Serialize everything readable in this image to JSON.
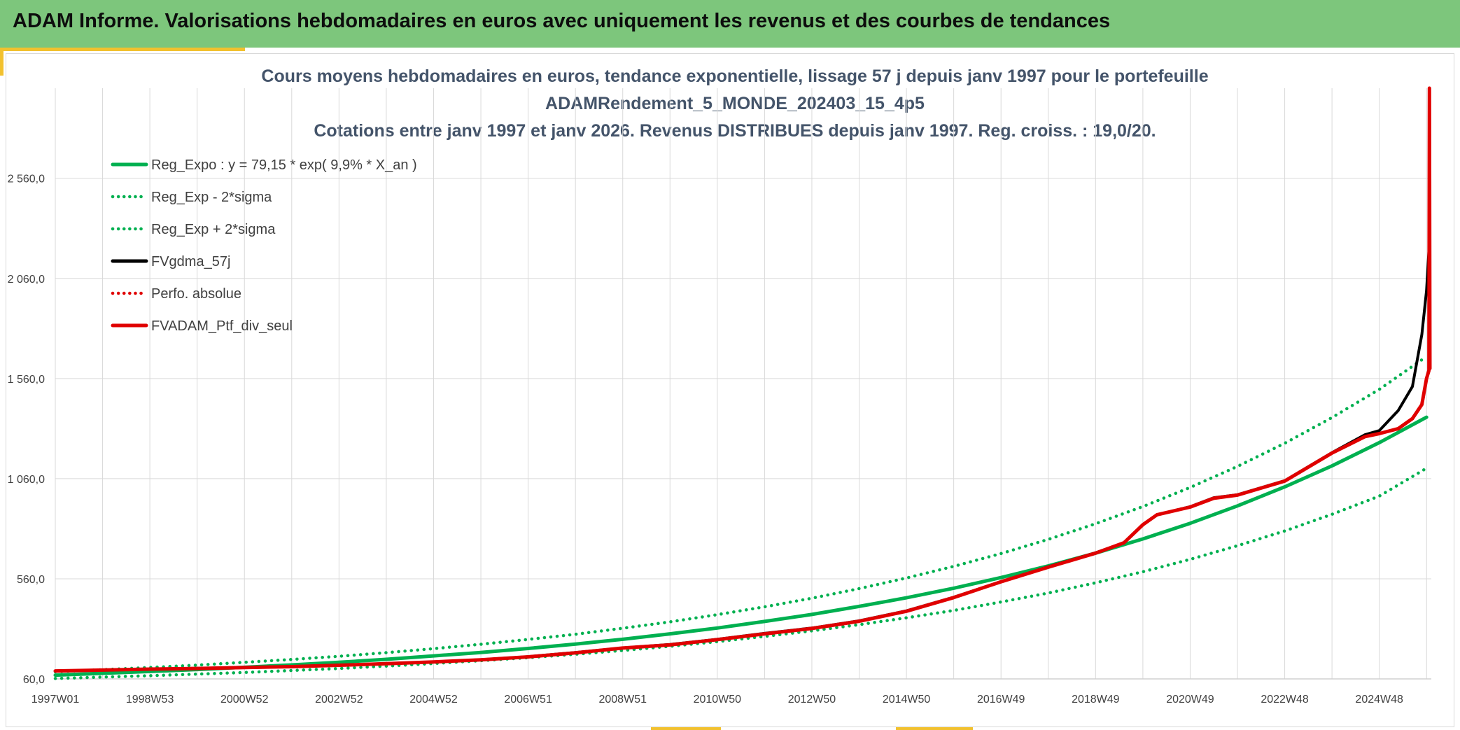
{
  "header": {
    "title": "ADAM Informe. Valorisations hebdomadaires en euros avec uniquement les revenus et des courbes de tendances"
  },
  "chart_data": {
    "type": "line",
    "title_lines": [
      "Cours moyens hebdomadaires en euros, tendance exponentielle, lissage 57 j depuis janv 1997 pour le portefeuille",
      "ADAMRendement_5_MONDE_202403_15_4p5",
      "Cotations entre janv 1997 et janv 2026. Revenus DISTRIBUES depuis janv 1997. Reg. croiss. : 19,0/20."
    ],
    "xlabel": "",
    "ylabel": "",
    "x_range_years": [
      1997.0,
      2026.1
    ],
    "ylim": [
      60,
      3010
    ],
    "y_ticks": [
      {
        "value": 60,
        "label": "60,0"
      },
      {
        "value": 560,
        "label": "560,0"
      },
      {
        "value": 1060,
        "label": "1 060,0"
      },
      {
        "value": 1560,
        "label": "1 560,0"
      },
      {
        "value": 2060,
        "label": "2 060,0"
      },
      {
        "value": 2560,
        "label": "2 560,0"
      }
    ],
    "x_ticks": [
      {
        "year": 1997.0,
        "label": "1997W01"
      },
      {
        "year": 1999.0,
        "label": "1998W53"
      },
      {
        "year": 2001.0,
        "label": "2000W52"
      },
      {
        "year": 2003.0,
        "label": "2002W52"
      },
      {
        "year": 2005.0,
        "label": "2004W52"
      },
      {
        "year": 2007.0,
        "label": "2006W51"
      },
      {
        "year": 2009.0,
        "label": "2008W51"
      },
      {
        "year": 2011.0,
        "label": "2010W50"
      },
      {
        "year": 2013.0,
        "label": "2012W50"
      },
      {
        "year": 2015.0,
        "label": "2014W50"
      },
      {
        "year": 2017.0,
        "label": "2016W49"
      },
      {
        "year": 2019.0,
        "label": "2018W49"
      },
      {
        "year": 2021.0,
        "label": "2020W49"
      },
      {
        "year": 2023.0,
        "label": "2022W48"
      },
      {
        "year": 2025.0,
        "label": "2024W48"
      }
    ],
    "grid": true,
    "legend_position": "top-left",
    "legend": [
      {
        "label": "Reg_Expo : y = 79,15 * exp( 9,9% *  X_an )",
        "color": "#00b050",
        "style": "solid"
      },
      {
        "label": "Reg_Exp - 2*sigma",
        "color": "#00b050",
        "style": "dotted"
      },
      {
        "label": "Reg_Exp + 2*sigma",
        "color": "#00b050",
        "style": "dotted"
      },
      {
        "label": "FVgdma_57j",
        "color": "#000000",
        "style": "solid"
      },
      {
        "label": "Perfo. absolue",
        "color": "#e00000",
        "style": "dotted"
      },
      {
        "label": "FVADAM_Ptf_div_seul",
        "color": "#e00000",
        "style": "solid"
      }
    ],
    "series": [
      {
        "name": "Reg_Expo",
        "color": "#00b050",
        "style": "solid",
        "x": [
          1997,
          1998,
          1999,
          2000,
          2001,
          2002,
          2003,
          2004,
          2005,
          2006,
          2007,
          2008,
          2009,
          2010,
          2011,
          2012,
          2013,
          2014,
          2015,
          2016,
          2017,
          2018,
          2019,
          2020,
          2021,
          2022,
          2023,
          2024,
          2025,
          2026
        ],
        "y": [
          79,
          88,
          97,
          107,
          118,
          130,
          143,
          158,
          175,
          192,
          212,
          234,
          258,
          285,
          314,
          347,
          382,
          422,
          465,
          513,
          566,
          624,
          688,
          759,
          837,
          924,
          1019,
          1124,
          1240,
          1367
        ]
      },
      {
        "name": "Reg_Exp - 2*sigma",
        "color": "#00b050",
        "style": "dotted",
        "x": [
          1997,
          1998,
          1999,
          2000,
          2001,
          2002,
          2003,
          2004,
          2005,
          2006,
          2007,
          2008,
          2009,
          2010,
          2011,
          2012,
          2013,
          2014,
          2015,
          2016,
          2017,
          2018,
          2019,
          2020,
          2021,
          2022,
          2023,
          2024,
          2025,
          2026
        ],
        "y": [
          62,
          69,
          76,
          84,
          92,
          102,
          112,
          124,
          137,
          151,
          166,
          183,
          202,
          223,
          246,
          272,
          300,
          331,
          365,
          402,
          444,
          489,
          540,
          595,
          657,
          725,
          799,
          882,
          973,
          1112
        ]
      },
      {
        "name": "Reg_Exp + 2*sigma",
        "color": "#00b050",
        "style": "dotted",
        "x": [
          1997,
          1998,
          1999,
          2000,
          2001,
          2002,
          2003,
          2004,
          2005,
          2006,
          2007,
          2008,
          2009,
          2010,
          2011,
          2012,
          2013,
          2014,
          2015,
          2016,
          2017,
          2018,
          2019,
          2020,
          2021,
          2022,
          2023,
          2024,
          2025,
          2026
        ],
        "y": [
          96,
          106,
          117,
          129,
          143,
          157,
          173,
          191,
          211,
          233,
          257,
          283,
          313,
          345,
          381,
          420,
          463,
          511,
          564,
          622,
          686,
          757,
          835,
          921,
          1016,
          1121,
          1237,
          1365,
          1506,
          1670
        ]
      },
      {
        "name": "FVgdma_57j",
        "color": "#000000",
        "style": "solid",
        "x": [
          1997,
          1998,
          1999,
          2000,
          2001,
          2002,
          2003,
          2004,
          2005,
          2006,
          2007,
          2008,
          2009,
          2010,
          2011,
          2012,
          2013,
          2014,
          2015,
          2016,
          2017,
          2018,
          2019,
          2019.6,
          2020,
          2020.3,
          2021,
          2021.5,
          2022,
          2023,
          2024,
          2024.7,
          2025,
          2025.4,
          2025.7,
          2025.9,
          2026.0,
          2026.05
        ],
        "y": [
          100,
          104,
          109,
          113,
          117,
          122,
          129,
          137,
          145,
          156,
          171,
          192,
          215,
          232,
          258,
          288,
          314,
          350,
          400,
          468,
          546,
          620,
          690,
          740,
          830,
          880,
          920,
          965,
          980,
          1050,
          1190,
          1280,
          1300,
          1400,
          1520,
          1780,
          2000,
          2200
        ]
      },
      {
        "name": "FVADAM_Ptf_div_seul",
        "color": "#e00000",
        "style": "solid",
        "x": [
          1997,
          1998,
          1999,
          2000,
          2001,
          2002,
          2003,
          2004,
          2005,
          2006,
          2007,
          2008,
          2009,
          2010,
          2011,
          2012,
          2013,
          2014,
          2015,
          2016,
          2017,
          2018,
          2019,
          2019.6,
          2020,
          2020.3,
          2021,
          2021.5,
          2022,
          2023,
          2024,
          2024.7,
          2025,
          2025.4,
          2025.7,
          2025.9,
          2026.0,
          2026.05,
          2026.06,
          2026.07
        ],
        "y": [
          100,
          104,
          109,
          112,
          117,
          121,
          128,
          136,
          145,
          155,
          170,
          190,
          214,
          230,
          256,
          285,
          312,
          348,
          398,
          466,
          545,
          618,
          688,
          740,
          830,
          880,
          918,
          962,
          978,
          1048,
          1188,
          1270,
          1285,
          1310,
          1360,
          1430,
          1560,
          1600,
          3010,
          1610
        ]
      }
    ]
  }
}
